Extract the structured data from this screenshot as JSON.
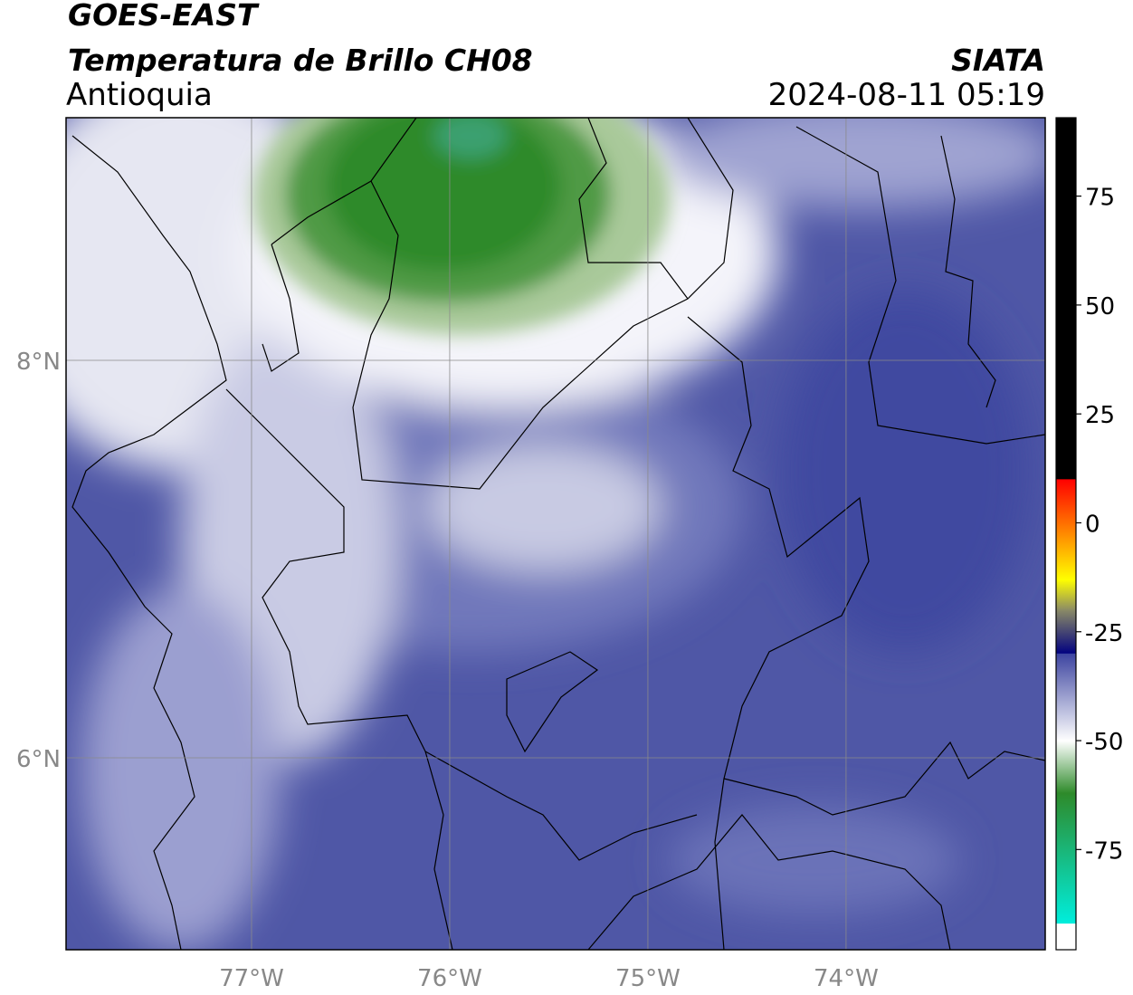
{
  "chart_data": {
    "type": "map",
    "title": "GOES-EAST",
    "subtitle": "Temperatura de Brillo CH08",
    "source": "SIATA",
    "region": "Antioquia",
    "timestamp": "2024-08-11 05:19",
    "xlim": [
      -77.936,
      -72.995
    ],
    "ylim": [
      5.034,
      9.221
    ],
    "xticks": [
      {
        "value": -77,
        "label": "77°W"
      },
      {
        "value": -76,
        "label": "76°W"
      },
      {
        "value": -75,
        "label": "75°W"
      },
      {
        "value": -74,
        "label": "74°W"
      }
    ],
    "yticks": [
      {
        "value": 6,
        "label": "6°N"
      },
      {
        "value": 8,
        "label": "8°N"
      }
    ],
    "grid": true,
    "colorbar": {
      "lim": [
        -98,
        93
      ],
      "ticks": [
        -75,
        -50,
        -25,
        0,
        25,
        50,
        75
      ],
      "bands": [
        {
          "from": 10,
          "to": 93,
          "colors": [
            "#000000",
            "#000000"
          ]
        },
        {
          "from": -13,
          "to": 10,
          "colors": [
            "#ffff00",
            "#ff0000"
          ]
        },
        {
          "from": -20,
          "to": -13,
          "colors": [
            "#8a8a66",
            "#ffff00"
          ]
        },
        {
          "from": -30,
          "to": -20,
          "colors": [
            "#000080",
            "#8a8a66"
          ]
        },
        {
          "from": -50,
          "to": -30,
          "colors": [
            "#ffffff",
            "#3c44a0"
          ]
        },
        {
          "from": -62,
          "to": -50,
          "colors": [
            "#2e8a2a",
            "#ffffff"
          ]
        },
        {
          "from": -92,
          "to": -62,
          "colors": [
            "#00eedd",
            "#2e8a2a"
          ]
        },
        {
          "from": -98,
          "to": -92,
          "colors": [
            "#ffffff",
            "#ffffff"
          ]
        }
      ]
    }
  }
}
